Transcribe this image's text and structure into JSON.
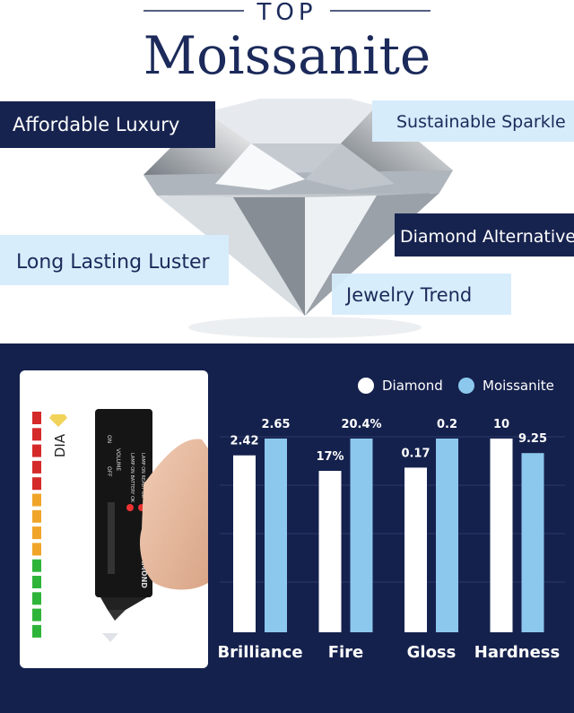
{
  "header": {
    "top": "TOP",
    "title": "Moissanite"
  },
  "features": [
    "Affordable Luxury",
    "Sustainable Sparkle",
    "Diamond Alternative",
    "Long Lasting Luster",
    "Jewelry Trend"
  ],
  "tester": {
    "scale_label": "DIA",
    "brand": "DIAMOND",
    "volume": "VOLUME",
    "off": "OFF",
    "on": "ON",
    "lamp_battery": "LAMP ON BATTERY OK",
    "lamp_ready": "LAMP ON READY OK"
  },
  "chart_data": {
    "type": "bar",
    "categories": [
      "Brilliance",
      "Fire",
      "Gloss",
      "Hardness"
    ],
    "series": [
      {
        "name": "Diamond",
        "color": "#ffffff",
        "values": [
          2.42,
          17,
          0.17,
          10
        ],
        "value_labels": [
          "2.42",
          "17%",
          "0.17",
          "10"
        ]
      },
      {
        "name": "Moissanite",
        "color": "#8cc8ee",
        "values": [
          2.65,
          20.4,
          0.2,
          9.25
        ],
        "value_labels": [
          "2.65",
          "20.4%",
          "0.2",
          "9.25"
        ]
      }
    ]
  }
}
